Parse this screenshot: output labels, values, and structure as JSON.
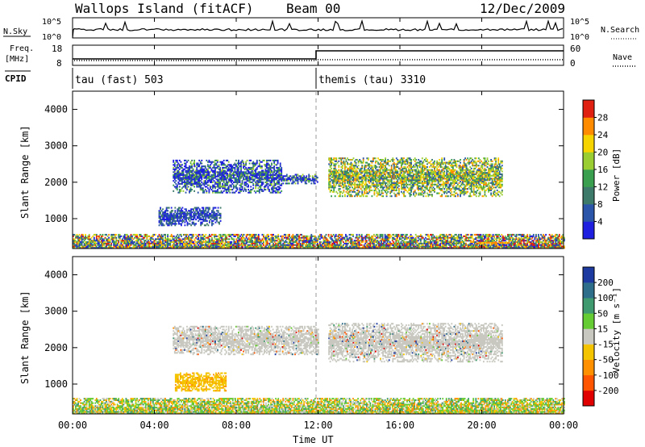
{
  "header": {
    "station": "Wallops Island (fitACF)",
    "beam": "Beam 00",
    "date": "12/Dec/2009"
  },
  "top_panels": {
    "nsky_label": "N.Sky",
    "nsearch_label": "N.Search",
    "nsky_ticks": [
      "10^5",
      "10^0"
    ],
    "nsearch_ticks": [
      "10^5",
      "10^0"
    ],
    "freq_label_line1": "Freq.",
    "freq_label_line2": "[MHz]",
    "freq_ticks": [
      "18",
      "8"
    ],
    "nave_label": "Nave",
    "nave_ticks": [
      "60",
      "0"
    ],
    "cpid_label": "CPID",
    "cpid_segments": [
      "tau (fast) 503",
      "themis (tau) 3310"
    ]
  },
  "axes": {
    "xlabel": "Time UT",
    "xticks": [
      "00:00",
      "04:00",
      "08:00",
      "12:00",
      "16:00",
      "20:00",
      "00:00"
    ],
    "ylabel": "Slant Range [km]",
    "yticks": [
      "1000",
      "2000",
      "3000",
      "4000"
    ]
  },
  "power_scale": {
    "label": "Power [dB]",
    "ticks": [
      "4",
      "8",
      "12",
      "16",
      "20",
      "24",
      "28"
    ],
    "colors": [
      "#1f1fe0",
      "#2a55a8",
      "#3e7a6a",
      "#3aa050",
      "#9acd32",
      "#f5d400",
      "#ff8c00",
      "#e02010"
    ]
  },
  "velocity_scale": {
    "label": "Velocity [m s⁻¹]",
    "ticks": [
      "200",
      "100",
      "50",
      "15",
      "-15",
      "-50",
      "-100",
      "-200"
    ],
    "colors": [
      "#1d3aa0",
      "#2f6e8a",
      "#3f9a70",
      "#66cc33",
      "#c8c8c0",
      "#f5c400",
      "#ff9000",
      "#ff5500",
      "#e00000"
    ]
  },
  "chart_data": {
    "type": "heatmap",
    "x_range_hours": [
      0,
      24
    ],
    "y_range_km": [
      180,
      4500
    ],
    "panels": [
      {
        "name": "Power",
        "regions": [
          {
            "t": [
              4.9,
              10.2
            ],
            "r": [
              1700,
              2600
            ],
            "level": "mixed-low"
          },
          {
            "t": [
              10.2,
              12.0
            ],
            "r": [
              1950,
              2200
            ],
            "level": "mixed-low"
          },
          {
            "t": [
              12.5,
              21.0
            ],
            "r": [
              1600,
              2650
            ],
            "level": "mixed-high"
          },
          {
            "t": [
              0.0,
              24.0
            ],
            "r": [
              180,
              550
            ],
            "level": "mixed-all"
          },
          {
            "t": [
              4.2,
              7.2
            ],
            "r": [
              800,
              1300
            ],
            "level": "low"
          },
          {
            "t": [
              19.8,
              21.3
            ],
            "r": [
              280,
              360
            ],
            "level": "orange"
          }
        ]
      },
      {
        "name": "Velocity",
        "regions": [
          {
            "t": [
              4.9,
              12.0
            ],
            "r": [
              1800,
              2600
            ],
            "level": "gray"
          },
          {
            "t": [
              12.5,
              21.0
            ],
            "r": [
              1600,
              2650
            ],
            "level": "gray"
          },
          {
            "t": [
              0.0,
              24.0
            ],
            "r": [
              180,
              600
            ],
            "level": "green-yellow"
          },
          {
            "t": [
              5.0,
              7.5
            ],
            "r": [
              800,
              1300
            ],
            "level": "yellow"
          }
        ]
      }
    ]
  }
}
